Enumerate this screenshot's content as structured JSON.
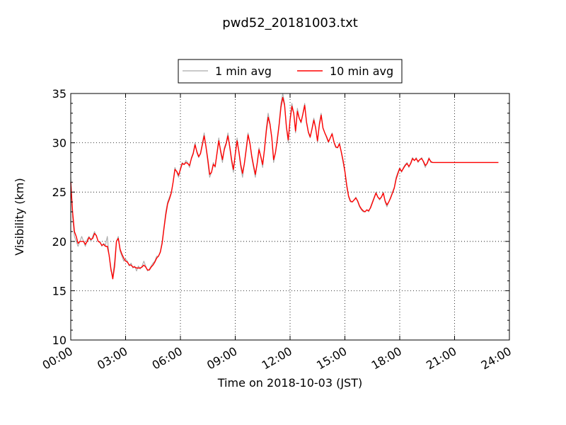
{
  "chart_data": {
    "type": "line",
    "title": "pwd52_20181003.txt",
    "xlabel": "Time on 2018-10-03 (JST)",
    "ylabel": "Visibility (km)",
    "xlim": [
      0,
      24
    ],
    "ylim": [
      10,
      35
    ],
    "x_ticks": [
      {
        "value": 0,
        "label": "00:00"
      },
      {
        "value": 3,
        "label": "03:00"
      },
      {
        "value": 6,
        "label": "06:00"
      },
      {
        "value": 9,
        "label": "09:00"
      },
      {
        "value": 12,
        "label": "12:00"
      },
      {
        "value": 15,
        "label": "15:00"
      },
      {
        "value": 18,
        "label": "18:00"
      },
      {
        "value": 21,
        "label": "21:00"
      },
      {
        "value": 24,
        "label": "24:00"
      }
    ],
    "y_ticks": [
      {
        "value": 10,
        "label": "10"
      },
      {
        "value": 15,
        "label": "15"
      },
      {
        "value": 20,
        "label": "20"
      },
      {
        "value": 25,
        "label": "25"
      },
      {
        "value": 30,
        "label": "30"
      },
      {
        "value": 35,
        "label": "35"
      }
    ],
    "grid": true,
    "legend_position": "top-center",
    "series": [
      {
        "name": "1 min avg",
        "color": "#aaaaaa",
        "x_step_hours": 0.1,
        "values": [
          26.5,
          22.5,
          20.5,
          20.0,
          19.5,
          20.0,
          20.5,
          20.0,
          19.5,
          20.2,
          20.5,
          20.0,
          20.5,
          21.0,
          20.5,
          20.0,
          20.0,
          19.5,
          19.8,
          19.6,
          20.5,
          18.5,
          17.0,
          16.5,
          18.0,
          20.0,
          20.5,
          19.0,
          18.5,
          18.0,
          18.2,
          18.0,
          17.5,
          17.8,
          17.3,
          17.5,
          17.0,
          17.5,
          17.2,
          17.5,
          18.0,
          17.5,
          17.0,
          17.2,
          17.5,
          17.8,
          18.0,
          18.5,
          18.5,
          19.0,
          20.0,
          21.5,
          23.0,
          24.0,
          24.5,
          25.0,
          26.0,
          27.5,
          27.0,
          26.5,
          27.5,
          28.0,
          27.8,
          28.2,
          28.0,
          27.5,
          28.5,
          29.0,
          30.0,
          29.0,
          28.5,
          29.0,
          30.0,
          31.0,
          29.5,
          28.0,
          26.5,
          27.0,
          28.0,
          27.5,
          29.0,
          30.5,
          29.0,
          28.0,
          29.5,
          30.0,
          31.0,
          29.5,
          28.0,
          27.0,
          29.0,
          30.5,
          29.0,
          27.5,
          26.5,
          28.0,
          29.5,
          31.0,
          30.0,
          28.5,
          27.5,
          26.5,
          28.0,
          29.5,
          28.5,
          27.5,
          29.5,
          31.5,
          33.0,
          32.0,
          30.5,
          28.0,
          29.0,
          30.5,
          32.0,
          34.0,
          35.0,
          34.0,
          31.5,
          30.0,
          32.5,
          34.0,
          33.0,
          31.0,
          33.5,
          32.5,
          32.0,
          33.0,
          34.0,
          32.0,
          31.0,
          30.5,
          31.5,
          32.5,
          31.5,
          30.0,
          32.0,
          33.0,
          31.5,
          31.0,
          30.5,
          30.0,
          30.5,
          31.0,
          30.0,
          29.5,
          29.5,
          30.0,
          29.0,
          28.0,
          27.0,
          25.5,
          24.5,
          24.0,
          24.0,
          24.2,
          24.5,
          24.0,
          23.5,
          23.2,
          23.0,
          23.0,
          23.2,
          23.0,
          23.5,
          24.0,
          24.5,
          25.0,
          24.5,
          24.2,
          24.5,
          25.0,
          24.0,
          23.5,
          24.0,
          24.5,
          25.0,
          25.5,
          26.5,
          27.0,
          27.5,
          27.0,
          27.5,
          27.8,
          28.0,
          27.5,
          28.0,
          28.5,
          28.2,
          28.5,
          28.0,
          28.3,
          28.5,
          28.0,
          27.5,
          28.0,
          28.5,
          28.0,
          28.0,
          28.0,
          28.0,
          28.0,
          28.0,
          28.0,
          28.0,
          28.0,
          28.0,
          28.0,
          28.0,
          28.0,
          28.0,
          28.0,
          28.0,
          28.0,
          28.0,
          28.0,
          28.0,
          28.0,
          28.0,
          28.0,
          28.0,
          28.0,
          28.0,
          28.0,
          28.0,
          28.0,
          28.0,
          28.0,
          28.0,
          28.0,
          28.0,
          28.0,
          28.0,
          28.0,
          28.0
        ]
      },
      {
        "name": "10 min avg",
        "color": "#ff0000",
        "x_step_hours": 0.1,
        "values": [
          26.0,
          23.0,
          21.0,
          20.5,
          19.8,
          20.0,
          20.0,
          20.0,
          19.7,
          20.0,
          20.4,
          20.2,
          20.3,
          20.8,
          20.6,
          20.0,
          19.9,
          19.6,
          19.7,
          19.5,
          19.5,
          18.6,
          17.2,
          16.2,
          17.5,
          20.0,
          20.3,
          19.2,
          18.7,
          18.3,
          18.0,
          17.9,
          17.6,
          17.6,
          17.4,
          17.4,
          17.3,
          17.3,
          17.3,
          17.4,
          17.6,
          17.4,
          17.1,
          17.1,
          17.4,
          17.6,
          17.9,
          18.3,
          18.5,
          18.9,
          19.8,
          21.3,
          22.7,
          23.8,
          24.3,
          24.9,
          26.0,
          27.3,
          27.1,
          26.7,
          27.3,
          27.9,
          27.8,
          28.0,
          27.9,
          27.7,
          28.4,
          28.9,
          29.8,
          29.1,
          28.6,
          28.9,
          29.8,
          30.7,
          29.6,
          28.3,
          26.8,
          27.0,
          27.8,
          27.6,
          28.9,
          30.2,
          29.2,
          28.3,
          29.3,
          29.9,
          30.7,
          29.6,
          28.3,
          27.3,
          28.8,
          30.2,
          29.1,
          27.8,
          26.9,
          27.9,
          29.3,
          30.8,
          30.0,
          28.7,
          27.7,
          26.8,
          27.9,
          29.3,
          28.6,
          27.8,
          29.3,
          31.2,
          32.6,
          31.9,
          30.5,
          28.3,
          29.0,
          30.3,
          31.8,
          33.6,
          34.6,
          33.8,
          31.6,
          30.3,
          32.3,
          33.7,
          33.0,
          31.2,
          33.2,
          32.5,
          32.1,
          32.9,
          33.8,
          32.1,
          31.1,
          30.6,
          31.4,
          32.3,
          31.5,
          30.2,
          31.8,
          32.8,
          31.5,
          31.0,
          30.6,
          30.1,
          30.5,
          30.9,
          30.1,
          29.6,
          29.5,
          29.9,
          29.1,
          28.2,
          27.1,
          25.7,
          24.6,
          24.1,
          24.0,
          24.2,
          24.4,
          24.1,
          23.6,
          23.3,
          23.1,
          23.0,
          23.2,
          23.1,
          23.4,
          23.9,
          24.4,
          24.9,
          24.5,
          24.3,
          24.5,
          24.9,
          24.1,
          23.7,
          24.0,
          24.4,
          24.9,
          25.4,
          26.3,
          26.9,
          27.4,
          27.1,
          27.4,
          27.7,
          27.9,
          27.6,
          27.9,
          28.4,
          28.2,
          28.4,
          28.1,
          28.3,
          28.4,
          28.1,
          27.7,
          27.9,
          28.4,
          28.1,
          28.0,
          28.0,
          28.0,
          28.0,
          28.0,
          28.0,
          28.0,
          28.0,
          28.0,
          28.0,
          28.0,
          28.0,
          28.0,
          28.0,
          28.0,
          28.0,
          28.0,
          28.0,
          28.0,
          28.0,
          28.0,
          28.0,
          28.0,
          28.0,
          28.0,
          28.0,
          28.0,
          28.0,
          28.0,
          28.0,
          28.0,
          28.0,
          28.0,
          28.0,
          28.0,
          28.0,
          28.0
        ]
      }
    ]
  }
}
